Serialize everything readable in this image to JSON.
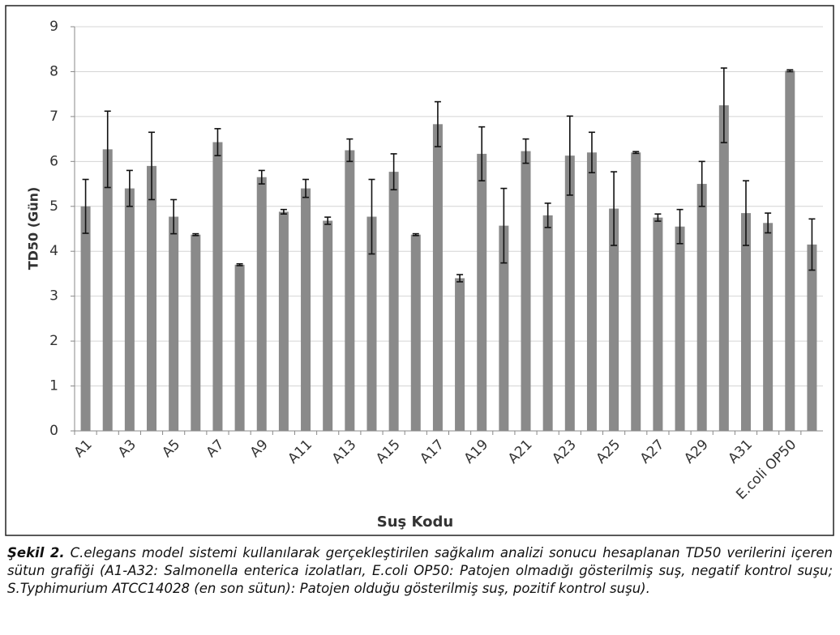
{
  "chart_data": {
    "type": "bar",
    "y_label": "TD50 (Gün)",
    "x_label": "Suş Kodu",
    "categories": [
      "A1",
      null,
      "A3",
      null,
      "A5",
      null,
      "A7",
      null,
      "A9",
      null,
      "A11",
      null,
      "A13",
      null,
      "A15",
      null,
      "A17",
      null,
      "A19",
      null,
      "A21",
      null,
      "A23",
      null,
      "A25",
      null,
      "A27",
      null,
      "A29",
      null,
      "A31",
      null,
      "E.coli OP50",
      null
    ],
    "values": [
      5.0,
      6.27,
      5.4,
      5.9,
      4.77,
      4.37,
      6.43,
      3.7,
      5.65,
      4.88,
      5.4,
      4.68,
      6.25,
      4.77,
      5.77,
      4.37,
      6.83,
      3.4,
      6.17,
      4.57,
      6.23,
      4.8,
      6.13,
      6.2,
      4.95,
      6.2,
      4.75,
      4.55,
      5.5,
      7.25,
      4.85,
      4.63,
      8.02,
      4.15
    ],
    "errors": [
      0.6,
      0.85,
      0.4,
      0.75,
      0.38,
      0.02,
      0.3,
      0.02,
      0.15,
      0.05,
      0.2,
      0.08,
      0.25,
      0.83,
      0.4,
      0.02,
      0.5,
      0.08,
      0.6,
      0.83,
      0.27,
      0.27,
      0.88,
      0.45,
      0.82,
      0.02,
      0.08,
      0.38,
      0.5,
      0.83,
      0.72,
      0.22,
      0.02,
      0.57
    ],
    "color": "#8a8a8a",
    "ylim": [
      0,
      9
    ],
    "yticks": [
      0,
      1,
      2,
      3,
      4,
      5,
      6,
      7,
      8,
      9
    ],
    "grid": true
  },
  "caption": {
    "label": "Şekil 2.",
    "text": "C.elegans model sistemi kullanılarak gerçekleştirilen sağkalım analizi sonucu hesaplanan TD50 verilerini içeren sütun grafiği (A1-A32: Salmonella enterica izolatları, E.coli OP50: Patojen olmadığı gösterilmiş suş, negatif kontrol suşu; S.Typhimurium ATCC14028 (en son sütun): Patojen olduğu gösterilmiş suş, pozitif kontrol suşu)."
  }
}
